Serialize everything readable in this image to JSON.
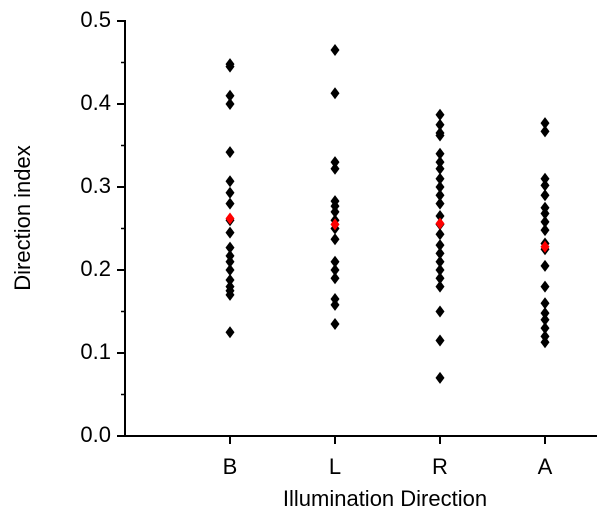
{
  "chart_data": {
    "type": "strip",
    "xlabel": "Illumination Direction",
    "ylabel": "Direction index",
    "categories": [
      "B",
      "L",
      "R",
      "A"
    ],
    "points": [
      [
        0.448,
        0.445,
        0.41,
        0.4,
        0.342,
        0.307,
        0.293,
        0.28,
        0.26,
        0.245,
        0.227,
        0.217,
        0.21,
        0.2,
        0.188,
        0.18,
        0.175,
        0.17,
        0.125
      ],
      [
        0.465,
        0.413,
        0.33,
        0.322,
        0.283,
        0.277,
        0.27,
        0.26,
        0.25,
        0.237,
        0.21,
        0.2,
        0.19,
        0.165,
        0.158,
        0.135
      ],
      [
        0.387,
        0.375,
        0.365,
        0.362,
        0.34,
        0.33,
        0.322,
        0.31,
        0.3,
        0.29,
        0.28,
        0.265,
        0.255,
        0.243,
        0.23,
        0.22,
        0.21,
        0.2,
        0.19,
        0.18,
        0.15,
        0.115,
        0.07
      ],
      [
        0.377,
        0.367,
        0.31,
        0.302,
        0.29,
        0.275,
        0.268,
        0.258,
        0.248,
        0.232,
        0.225,
        0.205,
        0.18,
        0.16,
        0.148,
        0.14,
        0.13,
        0.12,
        0.113
      ]
    ],
    "means": [
      0.262,
      0.255,
      0.256,
      0.228
    ],
    "color": "#000000",
    "mean_color": "#ff0000",
    "ylim": [
      0,
      0.5
    ],
    "yticks": [
      {
        "value": 0,
        "label": "0.0"
      },
      0.1,
      0.2,
      0.3,
      0.4,
      0.5
    ],
    "yminorticks": [
      0.05,
      0.15,
      0.25,
      0.35,
      0.45
    ]
  }
}
